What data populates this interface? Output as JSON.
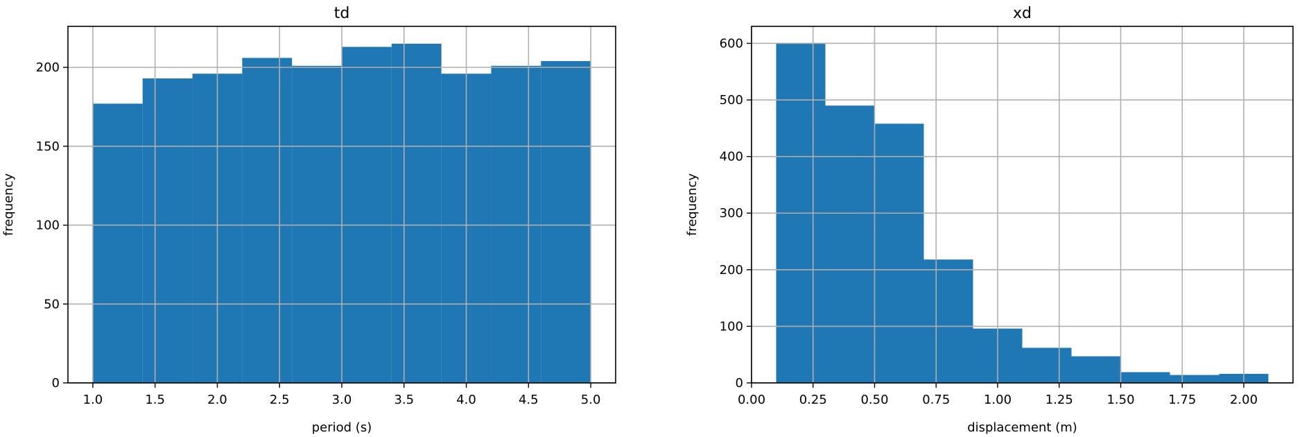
{
  "figure": {
    "bar_color": "#1f77b4",
    "grid_color": "#b0b0b0"
  },
  "chart_data": [
    {
      "type": "bar",
      "subtype": "histogram",
      "title": "td",
      "xlabel": "period (s)",
      "ylabel": "frequency",
      "bin_edges": [
        1.0,
        1.4,
        1.8,
        2.2,
        2.6,
        3.0,
        3.4,
        3.8,
        4.2,
        4.6,
        5.0
      ],
      "values": [
        177,
        193,
        196,
        206,
        201,
        213,
        215,
        196,
        201,
        204
      ],
      "xlim": [
        0.8,
        5.2
      ],
      "ylim": [
        0,
        226
      ],
      "xticks": [
        1.0,
        1.5,
        2.0,
        2.5,
        3.0,
        3.5,
        4.0,
        4.5,
        5.0
      ],
      "xtick_labels": [
        "1.0",
        "1.5",
        "2.0",
        "2.5",
        "3.0",
        "3.5",
        "4.0",
        "4.5",
        "5.0"
      ],
      "yticks": [
        0,
        50,
        100,
        150,
        200
      ],
      "ytick_labels": [
        "0",
        "50",
        "100",
        "150",
        "200"
      ],
      "grid": true,
      "legend": false
    },
    {
      "type": "bar",
      "subtype": "histogram",
      "title": "xd",
      "xlabel": "displacement (m)",
      "ylabel": "frequency",
      "bin_edges": [
        0.1,
        0.3,
        0.5,
        0.7,
        0.9,
        1.1,
        1.3,
        1.5,
        1.7,
        1.9,
        2.1
      ],
      "values": [
        600,
        490,
        458,
        218,
        96,
        62,
        47,
        19,
        14,
        16
      ],
      "xlim": [
        0.0,
        2.2
      ],
      "ylim": [
        0,
        630
      ],
      "xticks": [
        0.0,
        0.25,
        0.5,
        0.75,
        1.0,
        1.25,
        1.5,
        1.75,
        2.0
      ],
      "xtick_labels": [
        "0.00",
        "0.25",
        "0.50",
        "0.75",
        "1.00",
        "1.25",
        "1.50",
        "1.75",
        "2.00"
      ],
      "yticks": [
        0,
        100,
        200,
        300,
        400,
        500,
        600
      ],
      "ytick_labels": [
        "0",
        "100",
        "200",
        "300",
        "400",
        "500",
        "600"
      ],
      "grid": true,
      "legend": false
    }
  ]
}
